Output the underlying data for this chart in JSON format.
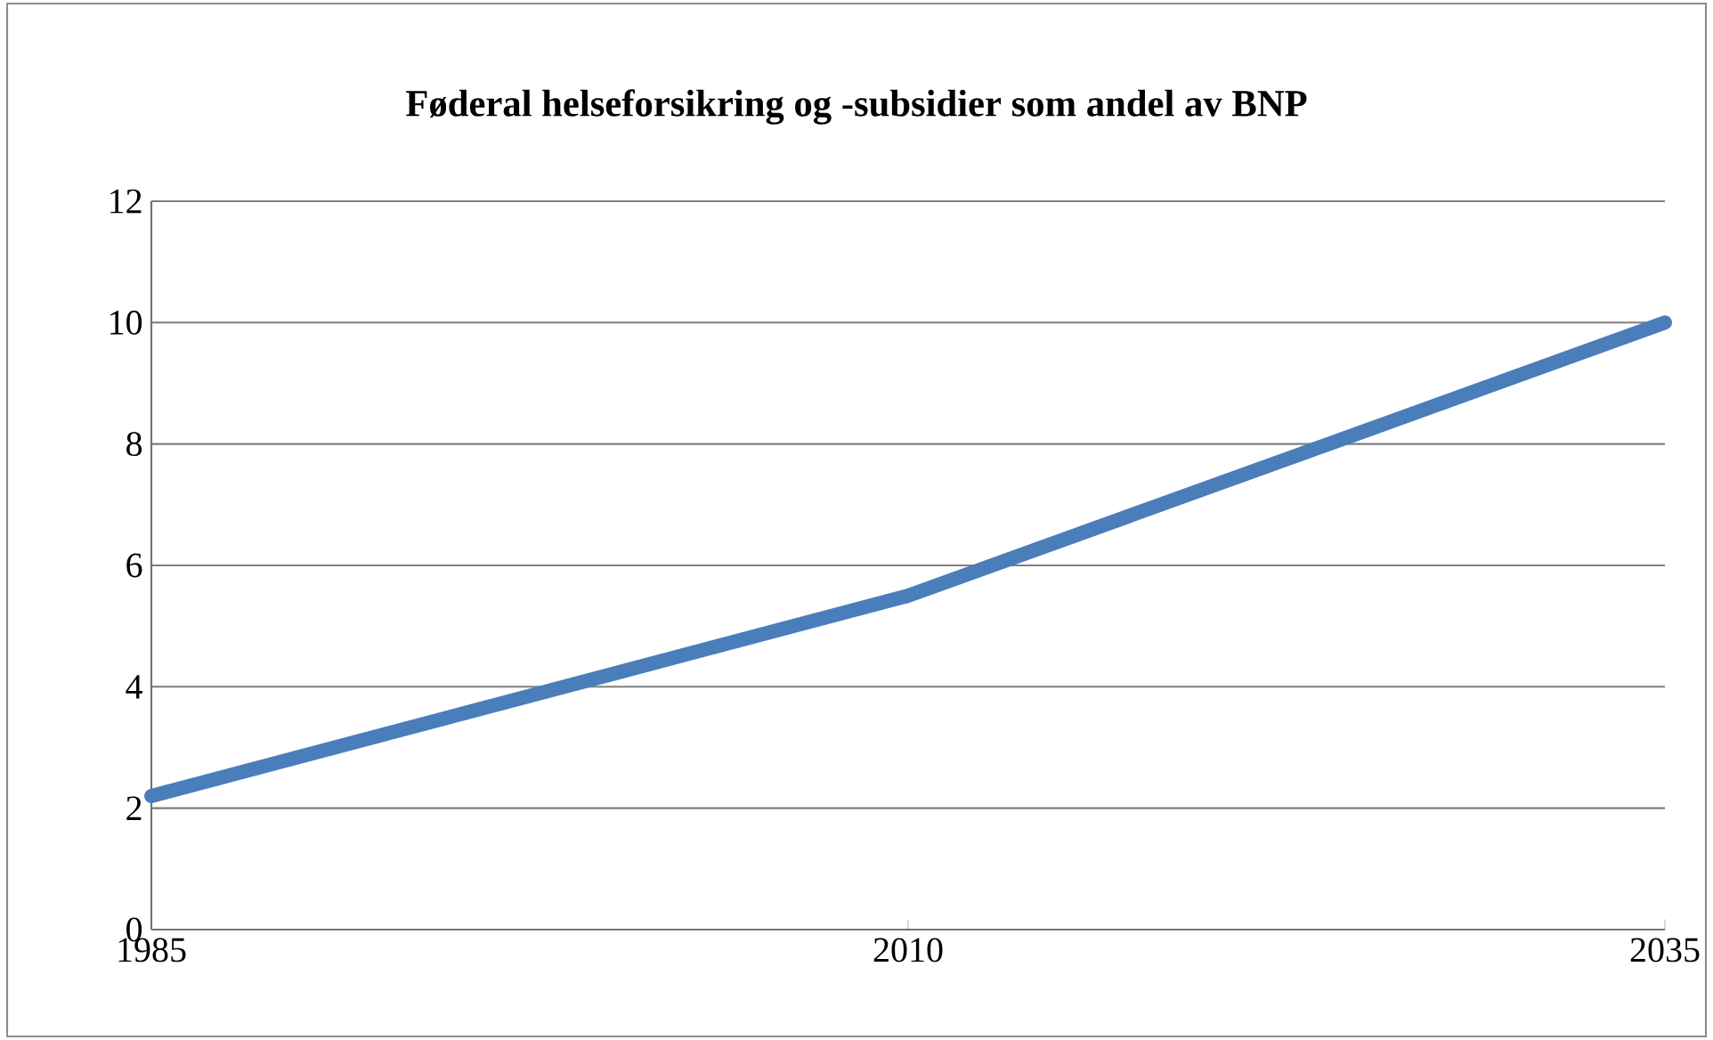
{
  "chart_data": {
    "type": "line",
    "title": "Føderal helseforsikring og -subsidier som andel av BNP",
    "categories": [
      "1985",
      "2010",
      "2035"
    ],
    "series": [
      {
        "color": "#4a7ebb",
        "values": [
          2.2,
          5.5,
          10
        ]
      }
    ],
    "ylim": [
      0,
      12
    ],
    "yticks": [
      0,
      2,
      4,
      6,
      8,
      10,
      12
    ],
    "grid": "y"
  }
}
